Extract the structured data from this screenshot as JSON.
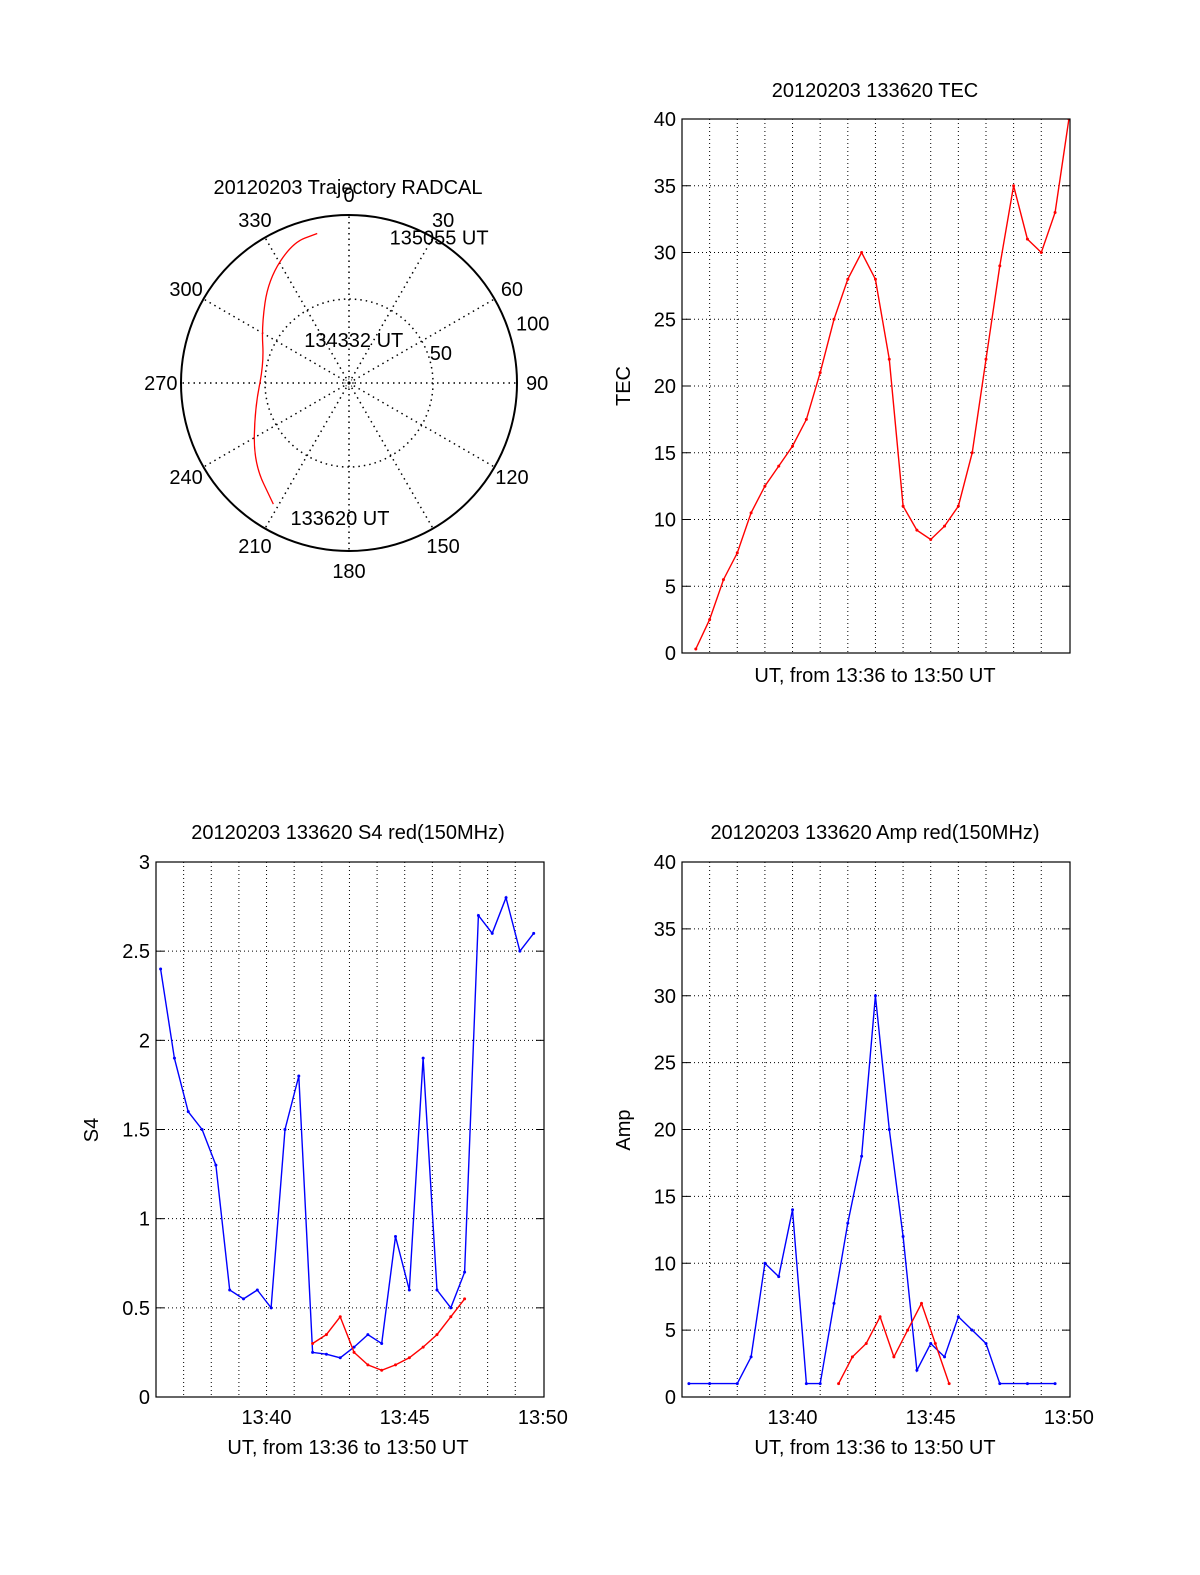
{
  "colors": {
    "red": "#ff0000",
    "blue": "#0000ff",
    "black": "#000000"
  },
  "chart_data": [
    {
      "type": "polar",
      "title": "20120203 Trajectory RADCAL",
      "angle_ticks": [
        "0",
        "30",
        "60",
        "90",
        "120",
        "150",
        "180",
        "210",
        "240",
        "270",
        "300",
        "330"
      ],
      "radius_ticks": [
        "50",
        "100"
      ],
      "trajectory": {
        "color": "red",
        "points": [
          {
            "az": 212,
            "r": 85
          },
          {
            "az": 230,
            "r": 74
          },
          {
            "az": 255,
            "r": 58
          },
          {
            "az": 283,
            "r": 52
          },
          {
            "az": 303,
            "r": 62
          },
          {
            "az": 322,
            "r": 78
          },
          {
            "az": 338,
            "r": 90
          },
          {
            "az": 348,
            "r": 91
          }
        ]
      },
      "annotations": [
        {
          "text": "135055 UT",
          "az": 14,
          "r": 90
        },
        {
          "text": "134332 UT",
          "az": 312,
          "r": 39
        },
        {
          "text": "133620 UT",
          "az": 205,
          "r": 88
        }
      ]
    },
    {
      "type": "line",
      "title": "20120203 133620 TEC",
      "xlabel": "UT, from 13:36 to 13:50 UT",
      "ylabel": "TEC",
      "xlim": [
        13.6,
        13.834
      ],
      "ylim": [
        0,
        40
      ],
      "yticks": [
        "0",
        "5",
        "10",
        "15",
        "20",
        "25",
        "30",
        "35",
        "40"
      ],
      "xticks": [],
      "grid": true,
      "series": [
        {
          "color": "red",
          "x": [
            "13:36:30",
            "13:37:00",
            "13:37:30",
            "13:38:00",
            "13:38:30",
            "13:39:00",
            "13:39:30",
            "13:40:00",
            "13:40:30",
            "13:41:00",
            "13:41:30",
            "13:42:00",
            "13:42:30",
            "13:43:00",
            "13:43:30",
            "13:44:00",
            "13:44:30",
            "13:45:00",
            "13:45:30",
            "13:46:00",
            "13:46:30",
            "13:47:00",
            "13:47:30",
            "13:48:00",
            "13:48:30",
            "13:49:00",
            "13:49:30",
            "13:50:00"
          ],
          "values": [
            0.3,
            2.5,
            5.5,
            7.5,
            10.5,
            12.5,
            14,
            15.5,
            17.5,
            21,
            25,
            28,
            30,
            28,
            22,
            11,
            9.2,
            8.5,
            9.5,
            11,
            15,
            22,
            29,
            35,
            31,
            30,
            33,
            40
          ]
        }
      ]
    },
    {
      "type": "line",
      "title": "20120203 133620 S4 red(150MHz)",
      "xlabel": "UT, from 13:36 to 13:50 UT",
      "ylabel": "S4",
      "xlim": [
        13.6,
        13.834
      ],
      "ylim": [
        0,
        3
      ],
      "xticks": [
        "13:40",
        "13:45",
        "13:50"
      ],
      "yticks": [
        "0",
        "0.5",
        "1",
        "1.5",
        "2",
        "2.5",
        "3"
      ],
      "grid": true,
      "series": [
        {
          "color": "blue",
          "x": [
            "13:36:10",
            "13:36:40",
            "13:37:10",
            "13:37:40",
            "13:38:10",
            "13:38:40",
            "13:39:10",
            "13:39:40",
            "13:40:10",
            "13:40:40",
            "13:41:10",
            "13:41:40",
            "13:42:10",
            "13:42:40",
            "13:43:10",
            "13:43:40",
            "13:44:10",
            "13:44:40",
            "13:45:10",
            "13:45:40",
            "13:46:10",
            "13:46:40",
            "13:47:10",
            "13:47:40",
            "13:48:10",
            "13:48:40",
            "13:49:10",
            "13:49:40"
          ],
          "values": [
            2.4,
            1.9,
            1.6,
            1.5,
            1.3,
            0.6,
            0.55,
            0.6,
            0.5,
            1.5,
            1.8,
            0.25,
            0.24,
            0.22,
            0.28,
            0.35,
            0.3,
            0.9,
            0.6,
            1.9,
            0.6,
            0.5,
            0.7,
            2.7,
            2.6,
            2.8,
            2.5,
            2.6
          ]
        },
        {
          "color": "red",
          "x": [
            "13:41:40",
            "13:42:10",
            "13:42:40",
            "13:43:10",
            "13:43:40",
            "13:44:10",
            "13:44:40",
            "13:45:10",
            "13:45:40",
            "13:46:10",
            "13:46:40",
            "13:47:10"
          ],
          "values": [
            0.3,
            0.35,
            0.45,
            0.25,
            0.18,
            0.15,
            0.18,
            0.22,
            0.28,
            0.35,
            0.45,
            0.55
          ]
        }
      ]
    },
    {
      "type": "line",
      "title": "20120203 133620 Amp red(150MHz)",
      "xlabel": "UT, from 13:36 to 13:50 UT",
      "ylabel": "Amp",
      "xlim": [
        13.6,
        13.834
      ],
      "ylim": [
        0,
        40
      ],
      "xticks": [
        "13:40",
        "13:45",
        "13:50"
      ],
      "yticks": [
        "0",
        "5",
        "10",
        "15",
        "20",
        "25",
        "30",
        "35",
        "40"
      ],
      "grid": true,
      "series": [
        {
          "color": "blue",
          "x": [
            "13:36:15",
            "13:37:00",
            "13:38:00",
            "13:38:30",
            "13:39:00",
            "13:39:30",
            "13:40:00",
            "13:40:30",
            "13:41:00",
            "13:41:30",
            "13:42:00",
            "13:42:30",
            "13:43:00",
            "13:43:30",
            "13:44:00",
            "13:44:30",
            "13:45:00",
            "13:45:30",
            "13:46:00",
            "13:46:30",
            "13:47:00",
            "13:47:30",
            "13:48:30",
            "13:49:30"
          ],
          "values": [
            1,
            1,
            1,
            3,
            10,
            9,
            14,
            1,
            1,
            7,
            13,
            18,
            30,
            20,
            12,
            2,
            4,
            3,
            6,
            5,
            4,
            1,
            1,
            1
          ]
        },
        {
          "color": "red",
          "x": [
            "13:41:40",
            "13:42:10",
            "13:42:40",
            "13:43:10",
            "13:43:40",
            "13:44:10",
            "13:44:40",
            "13:45:10",
            "13:45:40"
          ],
          "values": [
            1,
            3,
            4,
            6,
            3,
            5,
            7,
            4,
            1
          ]
        }
      ]
    }
  ]
}
